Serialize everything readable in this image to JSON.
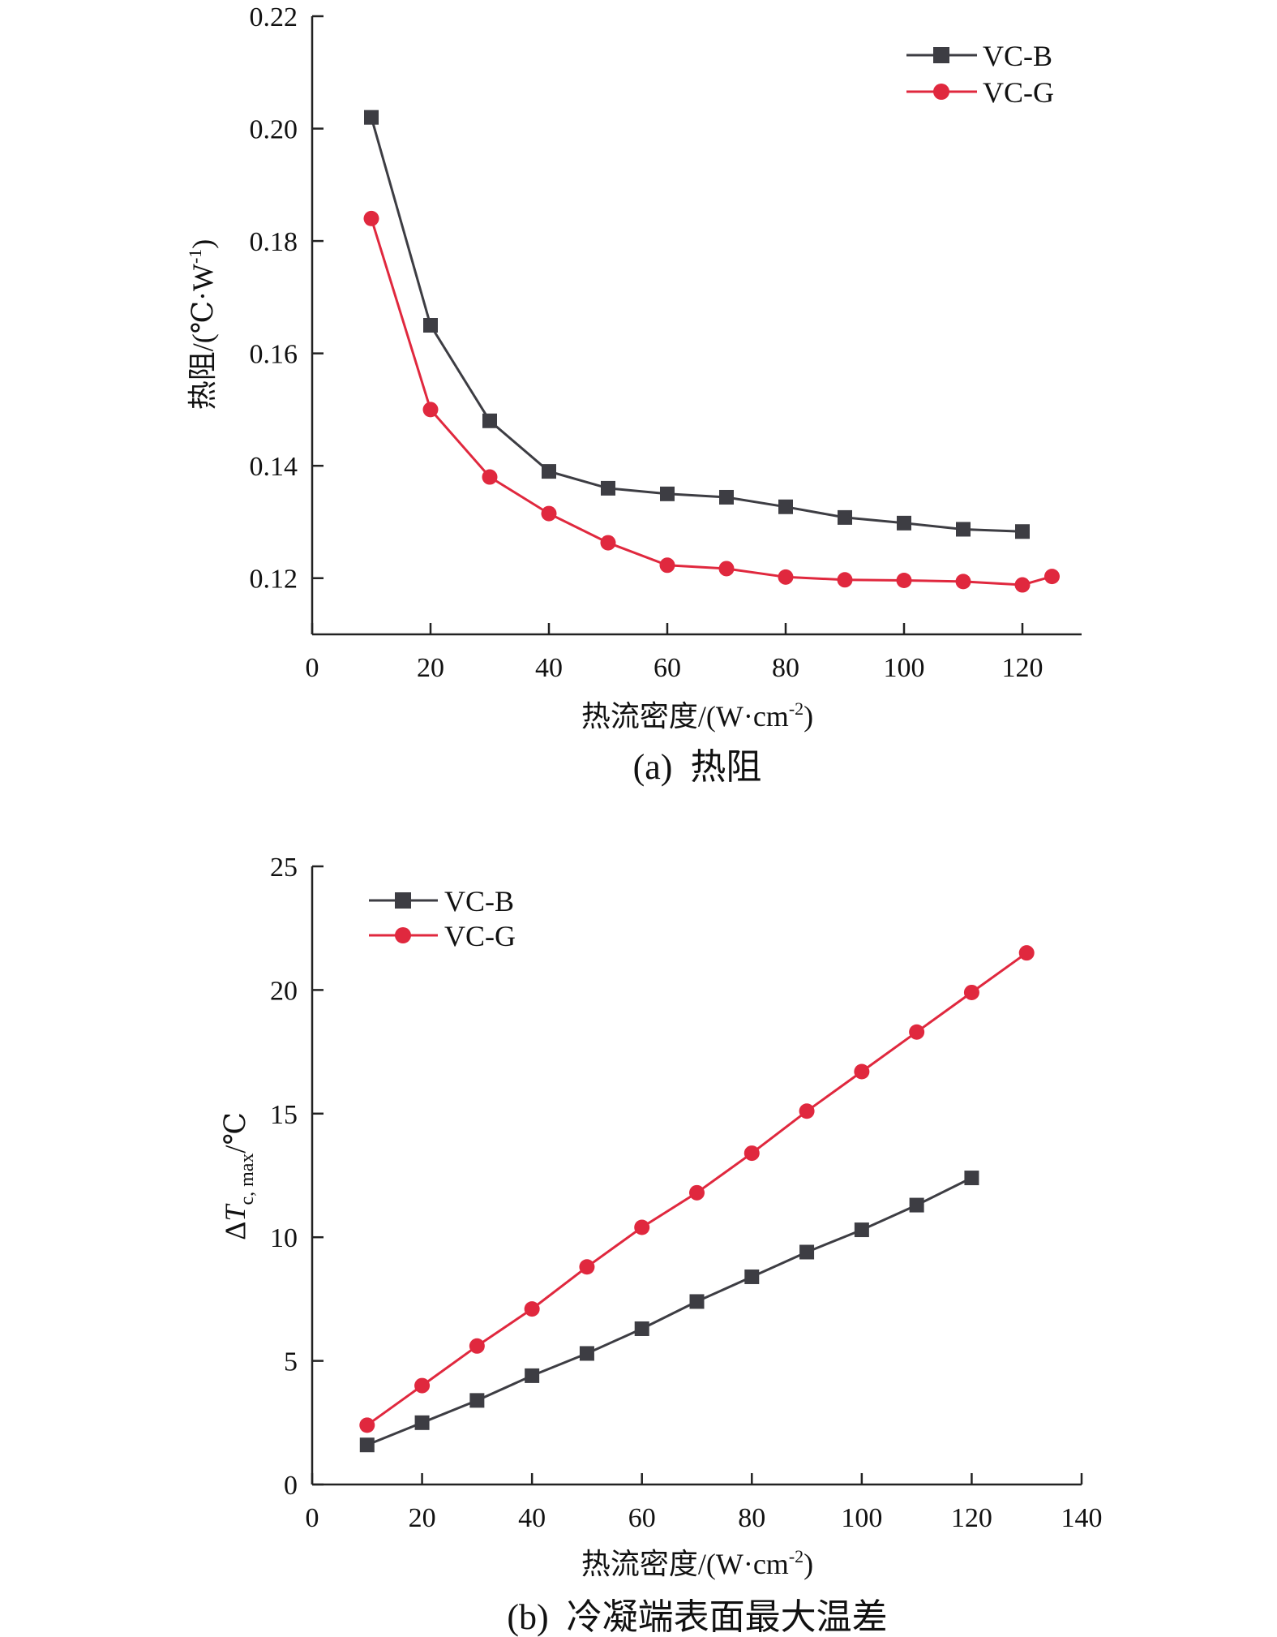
{
  "colors": {
    "vc_b": "#3d3d43",
    "vc_g": "#e0283e"
  },
  "chart_data": [
    {
      "type": "line",
      "caption": "(a)  热阻",
      "xlabel": {
        "main": "热流密度/(W·cm",
        "sup": "-2",
        "end": ")"
      },
      "ylabel": {
        "main": "热阻/(℃·W",
        "sup": "-1",
        "end": ")"
      },
      "xlim": [
        0,
        130
      ],
      "ylim": [
        0.11,
        0.22
      ],
      "xticks": [
        0,
        20,
        40,
        60,
        80,
        100,
        120
      ],
      "xtick_labels": [
        "0",
        "20",
        "40",
        "60",
        "80",
        "100",
        "120"
      ],
      "yticks": [
        0.12,
        0.14,
        0.16,
        0.18,
        0.2,
        0.22
      ],
      "ytick_labels": [
        "0.12",
        "0.14",
        "0.16",
        "0.18",
        "0.20",
        "0.22"
      ],
      "legend_position": "top-right",
      "series": [
        {
          "name": "VC-B",
          "marker": "square",
          "x": [
            10,
            20,
            30,
            40,
            50,
            60,
            70,
            80,
            90,
            100,
            110,
            120
          ],
          "y": [
            0.202,
            0.165,
            0.148,
            0.139,
            0.136,
            0.135,
            0.1344,
            0.1327,
            0.1308,
            0.1298,
            0.1287,
            0.1283
          ]
        },
        {
          "name": "VC-G",
          "marker": "circle",
          "x": [
            10,
            20,
            30,
            40,
            50,
            60,
            70,
            80,
            90,
            100,
            110,
            120,
            125
          ],
          "y": [
            0.184,
            0.15,
            0.138,
            0.1315,
            0.1263,
            0.1223,
            0.1217,
            0.1202,
            0.1197,
            0.1196,
            0.1194,
            0.1188,
            0.1203
          ]
        }
      ]
    },
    {
      "type": "line",
      "caption": "(b)  冷凝端表面最大温差",
      "xlabel": {
        "main": "热流密度/(W·cm",
        "sup": "-2",
        "end": ")"
      },
      "ylabel": {
        "delta": "Δ",
        "T": "T",
        "sub": "c, max",
        "end": "/℃"
      },
      "xlim": [
        0,
        140
      ],
      "ylim": [
        0,
        25
      ],
      "xticks": [
        0,
        20,
        40,
        60,
        80,
        100,
        120,
        140
      ],
      "xtick_labels": [
        "0",
        "20",
        "40",
        "60",
        "80",
        "100",
        "120",
        "140"
      ],
      "yticks": [
        0,
        5,
        10,
        15,
        20,
        25
      ],
      "ytick_labels": [
        "0",
        "5",
        "10",
        "15",
        "20",
        "25"
      ],
      "legend_position": "top-left",
      "series": [
        {
          "name": "VC-B",
          "marker": "square",
          "x": [
            10,
            20,
            30,
            40,
            50,
            60,
            70,
            80,
            90,
            100,
            110,
            120
          ],
          "y": [
            1.6,
            2.5,
            3.4,
            4.4,
            5.3,
            6.3,
            7.4,
            8.4,
            9.4,
            10.3,
            11.3,
            12.4
          ]
        },
        {
          "name": "VC-G",
          "marker": "circle",
          "x": [
            10,
            20,
            30,
            40,
            50,
            60,
            70,
            80,
            90,
            100,
            110,
            120,
            130
          ],
          "y": [
            2.4,
            4.0,
            5.6,
            7.1,
            8.8,
            10.4,
            11.8,
            13.4,
            15.1,
            16.7,
            18.3,
            19.9,
            21.5
          ]
        }
      ]
    }
  ]
}
